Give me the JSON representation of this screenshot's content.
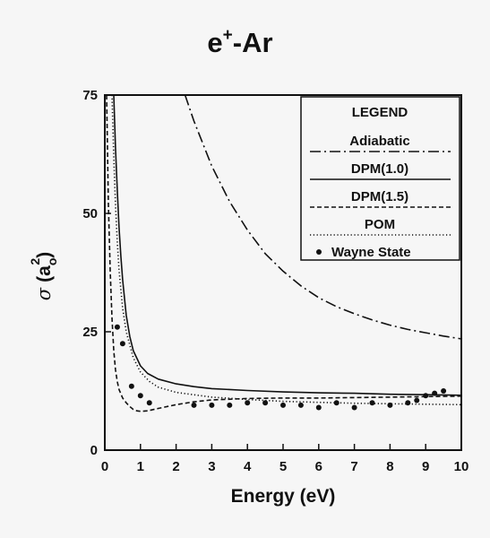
{
  "chart_data": {
    "type": "line",
    "title_main": "e",
    "title_sup": "+",
    "title_rest": "-Ar",
    "xlabel": "Energy (eV)",
    "ylabel_sigma": "σ",
    "ylabel_unit": "(a",
    "ylabel_sub": "o",
    "ylabel_sup": "2",
    "ylabel_close": ")",
    "xlim": [
      0,
      10
    ],
    "ylim": [
      0,
      75
    ],
    "xticks": [
      0,
      1,
      2,
      3,
      4,
      5,
      6,
      7,
      8,
      9,
      10
    ],
    "yticks": [
      0,
      25,
      50,
      75
    ],
    "legend_title": "LEGEND",
    "legend_position": "top-right",
    "series": [
      {
        "name": "Adiabatic",
        "style": "dashdot",
        "x": [
          2.25,
          2.5,
          3,
          3.5,
          4,
          4.5,
          5,
          5.5,
          6,
          6.5,
          7,
          7.5,
          8,
          8.5,
          9,
          9.5,
          10
        ],
        "y": [
          75,
          69.5,
          60,
          52.5,
          46.5,
          41.5,
          37.8,
          34.7,
          32.2,
          30.3,
          28.8,
          27.5,
          26.4,
          25.5,
          24.8,
          24.1,
          23.5
        ]
      },
      {
        "name": "DPM(1.0)",
        "style": "solid",
        "x": [
          0.25,
          0.3,
          0.35,
          0.4,
          0.45,
          0.5,
          0.6,
          0.7,
          0.8,
          1.0,
          1.2,
          1.5,
          2.0,
          2.5,
          3,
          4,
          5,
          6,
          7,
          8,
          9,
          10
        ],
        "y": [
          75,
          64,
          55,
          47,
          41,
          36,
          28.5,
          24,
          21,
          17.8,
          16.2,
          15,
          14,
          13.4,
          13,
          12.6,
          12.3,
          12.1,
          12,
          11.8,
          11.7,
          11.6
        ]
      },
      {
        "name": "DPM(1.5)",
        "style": "dashed",
        "x": [
          0.05,
          0.1,
          0.15,
          0.2,
          0.25,
          0.3,
          0.35,
          0.4,
          0.5,
          0.6,
          0.7,
          0.8,
          0.9,
          1.0,
          1.2,
          1.5,
          2,
          2.5,
          3,
          4,
          5,
          6,
          7,
          8,
          9,
          10
        ],
        "y": [
          75,
          52,
          38,
          28,
          21,
          17,
          14.5,
          12.8,
          11,
          10,
          9.2,
          8.6,
          8.3,
          8.2,
          8.3,
          8.8,
          9.6,
          10.2,
          10.6,
          10.9,
          11,
          11,
          11.1,
          11.2,
          11.3,
          11.4
        ]
      },
      {
        "name": "POM",
        "style": "dotted",
        "x": [
          0.2,
          0.25,
          0.3,
          0.35,
          0.4,
          0.5,
          0.6,
          0.8,
          1.0,
          1.25,
          1.5,
          2,
          3,
          4,
          5,
          6,
          7,
          8,
          9,
          10
        ],
        "y": [
          75,
          62,
          52,
          44,
          38,
          30,
          25,
          19.5,
          16.5,
          14.5,
          13.3,
          12.2,
          11.2,
          10.7,
          10.3,
          10.1,
          9.9,
          9.8,
          9.7,
          9.6
        ]
      },
      {
        "name": "Wayne State",
        "style": "points",
        "x": [
          0.35,
          0.5,
          0.75,
          1.0,
          1.25,
          2.5,
          3.0,
          3.5,
          4.0,
          4.5,
          5.0,
          5.5,
          6.0,
          6.5,
          7.0,
          7.5,
          8.0,
          8.5,
          8.75,
          9.0,
          9.25,
          9.5
        ],
        "y": [
          26,
          22.5,
          13.5,
          11.5,
          10,
          9.5,
          9.5,
          9.5,
          10,
          10,
          9.5,
          9.5,
          9,
          10,
          9,
          10,
          9.5,
          10,
          10.5,
          11.5,
          12,
          12.5
        ]
      }
    ]
  }
}
